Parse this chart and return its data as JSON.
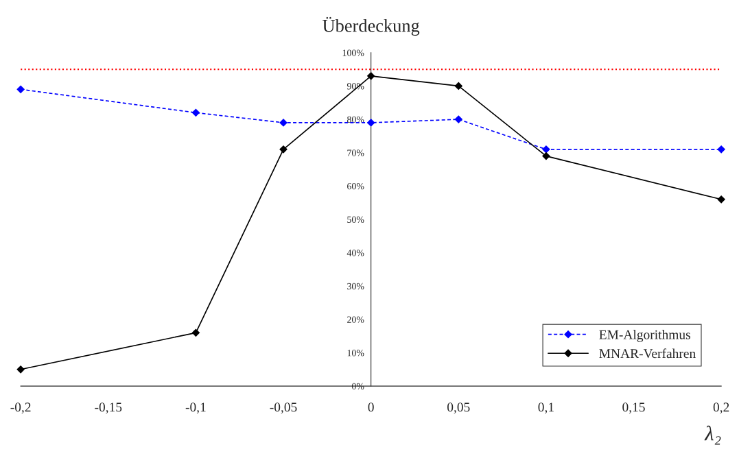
{
  "chart_data": {
    "type": "line",
    "title": "Überdeckung",
    "xlabel": "λ₂",
    "x": [
      -0.2,
      -0.1,
      -0.05,
      0,
      0.05,
      0.1,
      0.2
    ],
    "series": [
      {
        "name": "EM-Algorithmus",
        "color": "#0000ff",
        "values": [
          89,
          82,
          79,
          79,
          80,
          71,
          71
        ],
        "line_style": "dashed"
      },
      {
        "name": "MNAR-Verfahren",
        "color": "#000000",
        "values": [
          5,
          16,
          71,
          93,
          90,
          69,
          56
        ],
        "line_style": "solid"
      }
    ],
    "marker": "diamond",
    "ref_lines": [
      {
        "axis": "y",
        "value": 95,
        "color": "#ff0000",
        "line_style": "dotted"
      }
    ],
    "xlim": [
      -0.2,
      0.2
    ],
    "xticks": [
      {
        "value": -0.2,
        "label": "-0,2"
      },
      {
        "value": -0.15,
        "label": "-0,15"
      },
      {
        "value": -0.1,
        "label": "-0,1"
      },
      {
        "value": -0.05,
        "label": "-0,05"
      },
      {
        "value": 0,
        "label": "0"
      },
      {
        "value": 0.05,
        "label": "0,05"
      },
      {
        "value": 0.1,
        "label": "0,1"
      },
      {
        "value": 0.15,
        "label": "0,15"
      },
      {
        "value": 0.2,
        "label": "0,2"
      }
    ],
    "ylim": [
      0,
      100
    ],
    "yticks": [
      {
        "value": 0,
        "label": "0%"
      },
      {
        "value": 10,
        "label": "10%"
      },
      {
        "value": 20,
        "label": "20%"
      },
      {
        "value": 30,
        "label": "30%"
      },
      {
        "value": 40,
        "label": "40%"
      },
      {
        "value": 50,
        "label": "50%"
      },
      {
        "value": 60,
        "label": "60%"
      },
      {
        "value": 70,
        "label": "70%"
      },
      {
        "value": 80,
        "label": "80%"
      },
      {
        "value": 90,
        "label": "90%"
      },
      {
        "value": 100,
        "label": "100%"
      }
    ],
    "grid": false,
    "legend": "bottom right"
  }
}
